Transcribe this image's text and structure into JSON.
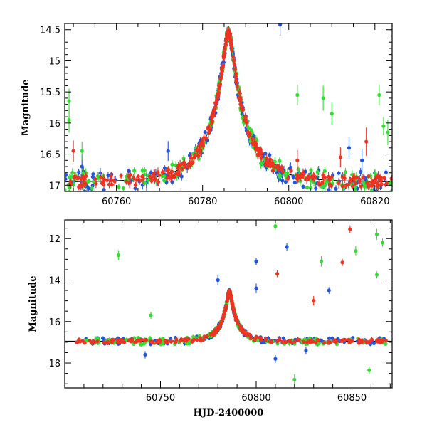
{
  "chart_data": [
    {
      "type": "scatter",
      "title": "",
      "xlabel": "",
      "ylabel": "Magnitude",
      "xlim": [
        60748,
        60824
      ],
      "ylim": [
        17.1,
        14.4
      ],
      "y_inverted": true,
      "x_ticks": [
        60760,
        60780,
        60800,
        60820
      ],
      "x_tick_labels": [
        "60760",
        "60780",
        "60800",
        "60820"
      ],
      "y_ticks": [
        14.5,
        15,
        15.5,
        16,
        16.5,
        17
      ],
      "y_tick_labels": [
        "14.5",
        "15",
        "15.5",
        "16",
        "16.5",
        "17"
      ],
      "model_curve": {
        "color": "#000000",
        "t0": 60786,
        "baseline": 16.95,
        "peak": 14.55,
        "x": [
          60748,
          60755,
          60760,
          60765,
          60770,
          60775,
          60778,
          60780,
          60782,
          60784,
          60785,
          60786,
          60787,
          60788,
          60790,
          60792,
          60795,
          60800,
          60805,
          60810,
          60815,
          60820,
          60824
        ],
        "y": [
          16.89,
          16.86,
          16.83,
          16.78,
          16.7,
          16.55,
          16.35,
          16.15,
          15.8,
          15.25,
          14.9,
          14.55,
          14.9,
          15.25,
          15.8,
          16.1,
          16.35,
          16.6,
          16.72,
          16.79,
          16.83,
          16.86,
          16.88
        ]
      },
      "series": [
        {
          "color": "#2255dd",
          "outliers": [
            {
              "x": 60798,
              "y": 14.42
            },
            {
              "x": 60752,
              "y": 16.7
            },
            {
              "x": 60767,
              "y": 16.95
            },
            {
              "x": 60772,
              "y": 16.45
            },
            {
              "x": 60814,
              "y": 16.4
            },
            {
              "x": 60817,
              "y": 16.6
            }
          ]
        },
        {
          "color": "#33dd33",
          "outliers": [
            {
              "x": 60749,
              "y": 15.65
            },
            {
              "x": 60749,
              "y": 15.95
            },
            {
              "x": 60752,
              "y": 16.45
            },
            {
              "x": 60802,
              "y": 15.55
            },
            {
              "x": 60808,
              "y": 15.6
            },
            {
              "x": 60810,
              "y": 15.85
            },
            {
              "x": 60821,
              "y": 15.55
            },
            {
              "x": 60822,
              "y": 16.05
            },
            {
              "x": 60823,
              "y": 16.15
            }
          ]
        },
        {
          "color": "#ee3322",
          "outliers": [
            {
              "x": 60750,
              "y": 16.45
            },
            {
              "x": 60802,
              "y": 16.6
            },
            {
              "x": 60812,
              "y": 16.55
            },
            {
              "x": 60818,
              "y": 16.3
            }
          ]
        }
      ]
    },
    {
      "type": "scatter",
      "title": "",
      "xlabel": "HJD-2400000",
      "ylabel": "Magnitude",
      "xlim": [
        60700,
        60871
      ],
      "ylim": [
        19.2,
        11.1
      ],
      "y_inverted": true,
      "x_ticks": [
        60750,
        60800,
        60850
      ],
      "x_tick_labels": [
        "60750",
        "60800",
        "60850"
      ],
      "y_ticks": [
        12,
        14,
        16,
        18
      ],
      "y_tick_labels": [
        "12",
        "14",
        "16",
        "18"
      ],
      "model_curve": {
        "color": "#000000",
        "t0": 60786,
        "baseline": 16.95,
        "peak": 14.55,
        "x": [
          60702,
          60720,
          60740,
          60760,
          60770,
          60775,
          60780,
          60783,
          60786,
          60789,
          60792,
          60797,
          60805,
          60820,
          60840,
          60868
        ],
        "y": [
          16.98,
          16.96,
          16.92,
          16.82,
          16.7,
          16.55,
          16.15,
          15.6,
          14.55,
          15.5,
          16.05,
          16.5,
          16.75,
          16.88,
          16.94,
          16.97
        ]
      },
      "series": [
        {
          "color": "#2255dd",
          "outliers": [
            {
              "x": 60780,
              "y": 14.0
            },
            {
              "x": 60800,
              "y": 13.1
            },
            {
              "x": 60800,
              "y": 14.4
            },
            {
              "x": 60816,
              "y": 12.4
            },
            {
              "x": 60838,
              "y": 14.5
            },
            {
              "x": 60810,
              "y": 17.8
            },
            {
              "x": 60742,
              "y": 17.6
            },
            {
              "x": 60826,
              "y": 17.4
            }
          ]
        },
        {
          "color": "#33dd33",
          "outliers": [
            {
              "x": 60728,
              "y": 12.8
            },
            {
              "x": 60810,
              "y": 11.4
            },
            {
              "x": 60863,
              "y": 11.8
            },
            {
              "x": 60866,
              "y": 12.2
            },
            {
              "x": 60834,
              "y": 13.1
            },
            {
              "x": 60852,
              "y": 12.6
            },
            {
              "x": 60863,
              "y": 13.75
            },
            {
              "x": 60820,
              "y": 18.8
            },
            {
              "x": 60859,
              "y": 18.35
            },
            {
              "x": 60745,
              "y": 15.7
            }
          ]
        },
        {
          "color": "#ee3322",
          "outliers": [
            {
              "x": 60849,
              "y": 11.55
            },
            {
              "x": 60845,
              "y": 13.15
            },
            {
              "x": 60811,
              "y": 13.7
            },
            {
              "x": 60830,
              "y": 15.0
            }
          ]
        }
      ]
    }
  ]
}
